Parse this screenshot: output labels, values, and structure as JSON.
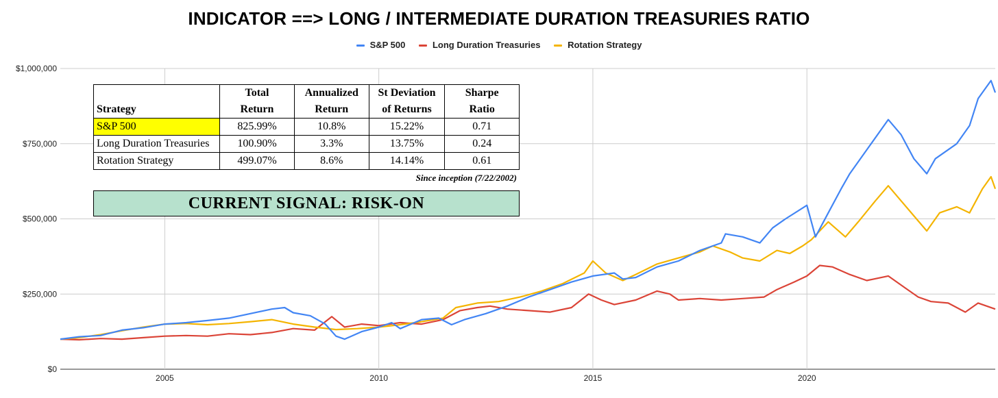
{
  "chart_data": {
    "type": "line",
    "title": "INDICATOR ==> LONG / INTERMEDIATE DURATION TREASURIES RATIO",
    "xlabel": "",
    "ylabel": "",
    "xlim": [
      2002.6,
      2024.1
    ],
    "ylim": [
      0,
      1000000
    ],
    "yticks": [
      "$0",
      "$250,000",
      "$500,000",
      "$750,000",
      "$1,000,000"
    ],
    "ytick_values": [
      0,
      250000,
      500000,
      750000,
      1000000
    ],
    "xticks": [
      "2005",
      "2010",
      "2015",
      "2020"
    ],
    "xtick_values": [
      2005,
      2010,
      2015,
      2020
    ],
    "grid": true,
    "legend_position": "top",
    "series": [
      {
        "name": "S&P 500",
        "color": "#4285f4",
        "points": [
          [
            2002.56,
            100000
          ],
          [
            2003.0,
            108000
          ],
          [
            2003.5,
            112000
          ],
          [
            2004.0,
            130000
          ],
          [
            2004.5,
            138000
          ],
          [
            2005.0,
            150000
          ],
          [
            2005.5,
            155000
          ],
          [
            2006.0,
            162000
          ],
          [
            2006.5,
            170000
          ],
          [
            2007.0,
            185000
          ],
          [
            2007.5,
            200000
          ],
          [
            2007.8,
            205000
          ],
          [
            2008.0,
            188000
          ],
          [
            2008.4,
            178000
          ],
          [
            2008.75,
            150000
          ],
          [
            2009.0,
            110000
          ],
          [
            2009.2,
            100000
          ],
          [
            2009.6,
            125000
          ],
          [
            2010.0,
            140000
          ],
          [
            2010.3,
            155000
          ],
          [
            2010.5,
            135000
          ],
          [
            2011.0,
            165000
          ],
          [
            2011.4,
            170000
          ],
          [
            2011.7,
            148000
          ],
          [
            2012.0,
            165000
          ],
          [
            2012.5,
            185000
          ],
          [
            2013.0,
            210000
          ],
          [
            2013.5,
            240000
          ],
          [
            2014.0,
            265000
          ],
          [
            2014.5,
            290000
          ],
          [
            2015.0,
            310000
          ],
          [
            2015.5,
            320000
          ],
          [
            2015.7,
            300000
          ],
          [
            2016.0,
            305000
          ],
          [
            2016.5,
            340000
          ],
          [
            2017.0,
            360000
          ],
          [
            2017.5,
            395000
          ],
          [
            2018.0,
            420000
          ],
          [
            2018.1,
            450000
          ],
          [
            2018.5,
            440000
          ],
          [
            2018.9,
            420000
          ],
          [
            2019.2,
            470000
          ],
          [
            2019.5,
            500000
          ],
          [
            2020.0,
            545000
          ],
          [
            2020.2,
            440000
          ],
          [
            2020.5,
            520000
          ],
          [
            2020.8,
            600000
          ],
          [
            2021.0,
            650000
          ],
          [
            2021.5,
            750000
          ],
          [
            2021.9,
            830000
          ],
          [
            2022.2,
            780000
          ],
          [
            2022.5,
            700000
          ],
          [
            2022.8,
            650000
          ],
          [
            2023.0,
            700000
          ],
          [
            2023.5,
            750000
          ],
          [
            2023.8,
            810000
          ],
          [
            2024.0,
            900000
          ],
          [
            2024.3,
            960000
          ],
          [
            2024.4,
            920000
          ]
        ]
      },
      {
        "name": "Long Duration Treasuries",
        "color": "#db4437",
        "points": [
          [
            2002.56,
            100000
          ],
          [
            2003.0,
            98000
          ],
          [
            2003.5,
            102000
          ],
          [
            2004.0,
            100000
          ],
          [
            2004.5,
            105000
          ],
          [
            2005.0,
            110000
          ],
          [
            2005.5,
            112000
          ],
          [
            2006.0,
            110000
          ],
          [
            2006.5,
            118000
          ],
          [
            2007.0,
            115000
          ],
          [
            2007.5,
            122000
          ],
          [
            2008.0,
            135000
          ],
          [
            2008.5,
            130000
          ],
          [
            2008.9,
            175000
          ],
          [
            2009.2,
            140000
          ],
          [
            2009.6,
            150000
          ],
          [
            2010.0,
            145000
          ],
          [
            2010.5,
            155000
          ],
          [
            2011.0,
            150000
          ],
          [
            2011.5,
            165000
          ],
          [
            2011.9,
            195000
          ],
          [
            2012.3,
            205000
          ],
          [
            2012.6,
            210000
          ],
          [
            2013.0,
            200000
          ],
          [
            2013.5,
            195000
          ],
          [
            2014.0,
            190000
          ],
          [
            2014.5,
            205000
          ],
          [
            2014.9,
            250000
          ],
          [
            2015.2,
            230000
          ],
          [
            2015.5,
            215000
          ],
          [
            2016.0,
            230000
          ],
          [
            2016.5,
            260000
          ],
          [
            2016.8,
            250000
          ],
          [
            2017.0,
            230000
          ],
          [
            2017.5,
            235000
          ],
          [
            2018.0,
            230000
          ],
          [
            2018.5,
            235000
          ],
          [
            2019.0,
            240000
          ],
          [
            2019.3,
            265000
          ],
          [
            2019.7,
            290000
          ],
          [
            2020.0,
            310000
          ],
          [
            2020.3,
            345000
          ],
          [
            2020.6,
            340000
          ],
          [
            2021.0,
            315000
          ],
          [
            2021.4,
            295000
          ],
          [
            2021.9,
            310000
          ],
          [
            2022.3,
            270000
          ],
          [
            2022.6,
            240000
          ],
          [
            2022.9,
            225000
          ],
          [
            2023.3,
            220000
          ],
          [
            2023.7,
            190000
          ],
          [
            2024.0,
            220000
          ],
          [
            2024.4,
            200000
          ]
        ]
      },
      {
        "name": "Rotation Strategy",
        "color": "#f4b400",
        "points": [
          [
            2002.56,
            100000
          ],
          [
            2003.0,
            105000
          ],
          [
            2003.5,
            115000
          ],
          [
            2004.0,
            128000
          ],
          [
            2004.5,
            140000
          ],
          [
            2005.0,
            150000
          ],
          [
            2005.5,
            152000
          ],
          [
            2006.0,
            148000
          ],
          [
            2006.5,
            152000
          ],
          [
            2007.0,
            158000
          ],
          [
            2007.5,
            165000
          ],
          [
            2008.0,
            150000
          ],
          [
            2008.5,
            140000
          ],
          [
            2009.0,
            132000
          ],
          [
            2009.5,
            135000
          ],
          [
            2010.0,
            140000
          ],
          [
            2010.5,
            148000
          ],
          [
            2011.0,
            158000
          ],
          [
            2011.5,
            170000
          ],
          [
            2011.8,
            205000
          ],
          [
            2012.3,
            220000
          ],
          [
            2012.8,
            225000
          ],
          [
            2013.3,
            240000
          ],
          [
            2013.8,
            260000
          ],
          [
            2014.3,
            285000
          ],
          [
            2014.8,
            320000
          ],
          [
            2015.0,
            360000
          ],
          [
            2015.3,
            320000
          ],
          [
            2015.7,
            295000
          ],
          [
            2016.0,
            315000
          ],
          [
            2016.5,
            350000
          ],
          [
            2017.0,
            370000
          ],
          [
            2017.5,
            390000
          ],
          [
            2017.8,
            410000
          ],
          [
            2018.2,
            390000
          ],
          [
            2018.5,
            370000
          ],
          [
            2018.9,
            360000
          ],
          [
            2019.3,
            395000
          ],
          [
            2019.6,
            385000
          ],
          [
            2019.9,
            410000
          ],
          [
            2020.1,
            430000
          ],
          [
            2020.5,
            490000
          ],
          [
            2020.9,
            440000
          ],
          [
            2021.2,
            490000
          ],
          [
            2021.6,
            560000
          ],
          [
            2021.9,
            610000
          ],
          [
            2022.2,
            560000
          ],
          [
            2022.5,
            510000
          ],
          [
            2022.8,
            460000
          ],
          [
            2023.1,
            520000
          ],
          [
            2023.5,
            540000
          ],
          [
            2023.8,
            520000
          ],
          [
            2024.1,
            600000
          ],
          [
            2024.3,
            640000
          ],
          [
            2024.4,
            600000
          ]
        ]
      }
    ]
  },
  "stats_table": {
    "headers": [
      {
        "line1": "",
        "line2": "Strategy"
      },
      {
        "line1": "Total",
        "line2": "Return"
      },
      {
        "line1": "Annualized",
        "line2": "Return"
      },
      {
        "line1": "St Deviation",
        "line2": "of Returns"
      },
      {
        "line1": "Sharpe",
        "line2": "Ratio"
      }
    ],
    "rows": [
      {
        "strategy": "S&P 500",
        "total_return": "825.99%",
        "annualized_return": "10.8%",
        "st_deviation": "15.22%",
        "sharpe": "0.71",
        "highlight": "#ffff00"
      },
      {
        "strategy": "Long Duration Treasuries",
        "total_return": "100.90%",
        "annualized_return": "3.3%",
        "st_deviation": "13.75%",
        "sharpe": "0.24"
      },
      {
        "strategy": "Rotation Strategy",
        "total_return": "499.07%",
        "annualized_return": "8.6%",
        "st_deviation": "14.14%",
        "sharpe": "0.61"
      }
    ],
    "since_inception": "Since inception (7/22/2002)",
    "current_signal": "CURRENT SIGNAL: RISK-ON",
    "signal_color": "#b7e1cd"
  }
}
